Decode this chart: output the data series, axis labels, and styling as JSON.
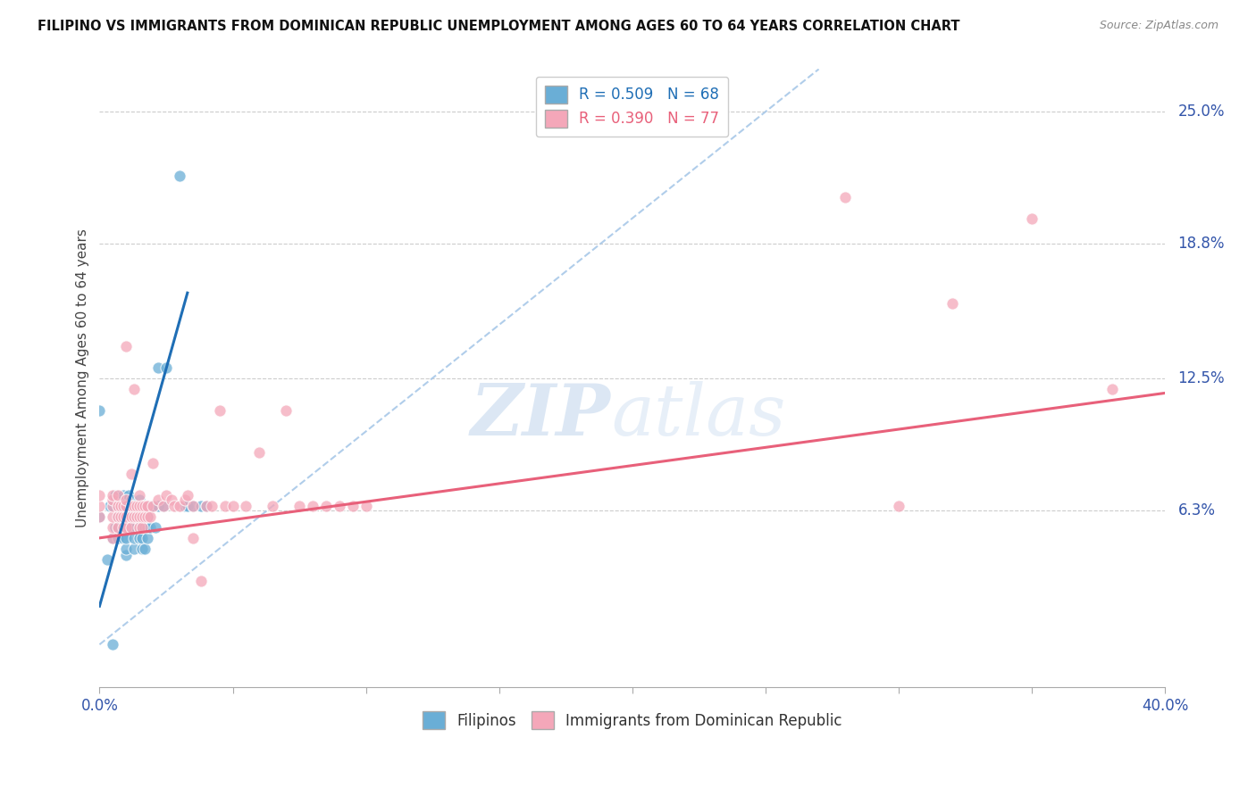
{
  "title": "FILIPINO VS IMMIGRANTS FROM DOMINICAN REPUBLIC UNEMPLOYMENT AMONG AGES 60 TO 64 YEARS CORRELATION CHART",
  "source": "Source: ZipAtlas.com",
  "ylabel": "Unemployment Among Ages 60 to 64 years",
  "yticks_right": [
    "25.0%",
    "18.8%",
    "12.5%",
    "6.3%"
  ],
  "ytick_values": [
    0.25,
    0.188,
    0.125,
    0.063
  ],
  "xlim": [
    0.0,
    0.4
  ],
  "ylim": [
    -0.02,
    0.27
  ],
  "legend1_r": "R = 0.509",
  "legend1_n": "N = 68",
  "legend2_r": "R = 0.390",
  "legend2_n": "N = 77",
  "filipinos_color": "#6aaed6",
  "dominican_color": "#f4a7b9",
  "filipinos_line_color": "#1f6eb5",
  "dominican_line_color": "#e8607a",
  "diagonal_line_color": "#a8c8e8",
  "filipinos_x": [
    0.0,
    0.0,
    0.003,
    0.004,
    0.005,
    0.005,
    0.006,
    0.006,
    0.007,
    0.007,
    0.007,
    0.007,
    0.008,
    0.008,
    0.009,
    0.009,
    0.009,
    0.01,
    0.01,
    0.01,
    0.01,
    0.01,
    0.01,
    0.01,
    0.011,
    0.011,
    0.012,
    0.012,
    0.012,
    0.012,
    0.013,
    0.013,
    0.013,
    0.013,
    0.014,
    0.014,
    0.014,
    0.015,
    0.015,
    0.015,
    0.015,
    0.015,
    0.016,
    0.016,
    0.016,
    0.016,
    0.016,
    0.017,
    0.017,
    0.017,
    0.018,
    0.018,
    0.018,
    0.018,
    0.019,
    0.019,
    0.02,
    0.021,
    0.022,
    0.022,
    0.024,
    0.025,
    0.03,
    0.032,
    0.033,
    0.035,
    0.038,
    0.04
  ],
  "filipinos_y": [
    0.06,
    0.11,
    0.04,
    0.065,
    0.0,
    0.05,
    0.055,
    0.07,
    0.05,
    0.055,
    0.06,
    0.065,
    0.065,
    0.068,
    0.05,
    0.065,
    0.07,
    0.042,
    0.045,
    0.05,
    0.055,
    0.06,
    0.065,
    0.068,
    0.055,
    0.07,
    0.055,
    0.06,
    0.063,
    0.068,
    0.045,
    0.05,
    0.06,
    0.065,
    0.055,
    0.06,
    0.065,
    0.05,
    0.055,
    0.058,
    0.065,
    0.068,
    0.045,
    0.05,
    0.055,
    0.06,
    0.065,
    0.045,
    0.055,
    0.065,
    0.05,
    0.055,
    0.06,
    0.065,
    0.055,
    0.065,
    0.065,
    0.055,
    0.065,
    0.13,
    0.065,
    0.13,
    0.22,
    0.065,
    0.065,
    0.065,
    0.065,
    0.065
  ],
  "dominican_x": [
    0.0,
    0.0,
    0.0,
    0.005,
    0.005,
    0.005,
    0.005,
    0.005,
    0.005,
    0.007,
    0.007,
    0.007,
    0.007,
    0.008,
    0.008,
    0.009,
    0.009,
    0.009,
    0.01,
    0.01,
    0.01,
    0.01,
    0.01,
    0.012,
    0.012,
    0.012,
    0.012,
    0.013,
    0.013,
    0.013,
    0.014,
    0.014,
    0.015,
    0.015,
    0.015,
    0.015,
    0.016,
    0.016,
    0.016,
    0.017,
    0.017,
    0.018,
    0.018,
    0.019,
    0.02,
    0.02,
    0.022,
    0.024,
    0.025,
    0.027,
    0.028,
    0.03,
    0.032,
    0.033,
    0.035,
    0.035,
    0.038,
    0.04,
    0.042,
    0.045,
    0.047,
    0.05,
    0.055,
    0.06,
    0.065,
    0.07,
    0.075,
    0.08,
    0.085,
    0.09,
    0.095,
    0.1,
    0.28,
    0.32,
    0.35,
    0.38,
    0.3
  ],
  "dominican_y": [
    0.06,
    0.065,
    0.07,
    0.05,
    0.055,
    0.06,
    0.065,
    0.068,
    0.07,
    0.055,
    0.06,
    0.065,
    0.07,
    0.06,
    0.065,
    0.055,
    0.06,
    0.065,
    0.055,
    0.06,
    0.065,
    0.068,
    0.14,
    0.055,
    0.06,
    0.065,
    0.08,
    0.06,
    0.065,
    0.12,
    0.06,
    0.065,
    0.055,
    0.06,
    0.065,
    0.07,
    0.055,
    0.06,
    0.065,
    0.06,
    0.065,
    0.06,
    0.065,
    0.06,
    0.065,
    0.085,
    0.068,
    0.065,
    0.07,
    0.068,
    0.065,
    0.065,
    0.068,
    0.07,
    0.05,
    0.065,
    0.03,
    0.065,
    0.065,
    0.11,
    0.065,
    0.065,
    0.065,
    0.09,
    0.065,
    0.11,
    0.065,
    0.065,
    0.065,
    0.065,
    0.065,
    0.065,
    0.21,
    0.16,
    0.2,
    0.12,
    0.065
  ]
}
